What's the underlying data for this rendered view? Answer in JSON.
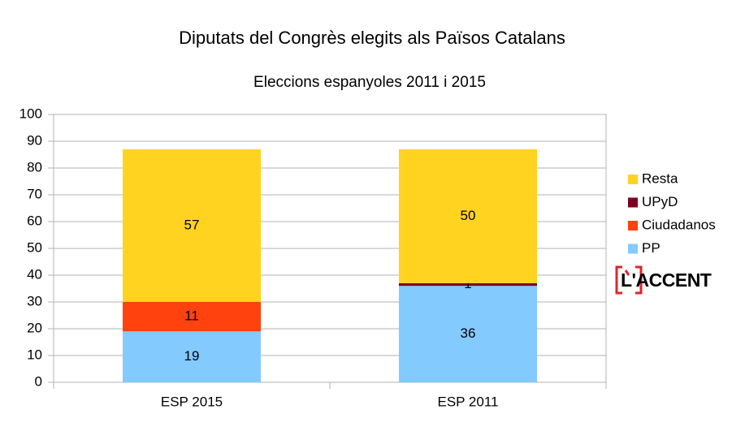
{
  "chart_data": {
    "type": "stacked_bar",
    "title": "Diputats del Congrès elegits als Països Catalans",
    "subtitle": "Eleccions espanyoles 2011 i 2015",
    "categories": [
      "ESP 2015",
      "ESP 2011"
    ],
    "series": [
      {
        "name": "PP",
        "color": "#83caff",
        "values": [
          19,
          36
        ]
      },
      {
        "name": "Ciudadanos",
        "color": "#ff420e",
        "values": [
          11,
          0
        ]
      },
      {
        "name": "UPyD",
        "color": "#7e0021",
        "values": [
          0,
          1
        ]
      },
      {
        "name": "Resta",
        "color": "#ffd320",
        "values": [
          57,
          50
        ]
      }
    ],
    "ylim": [
      0,
      100
    ],
    "yticks": [
      0,
      10,
      20,
      30,
      40,
      50,
      60,
      70,
      80,
      90,
      100
    ],
    "grid": true,
    "legend": "right",
    "logo": "L'ACCENT"
  }
}
